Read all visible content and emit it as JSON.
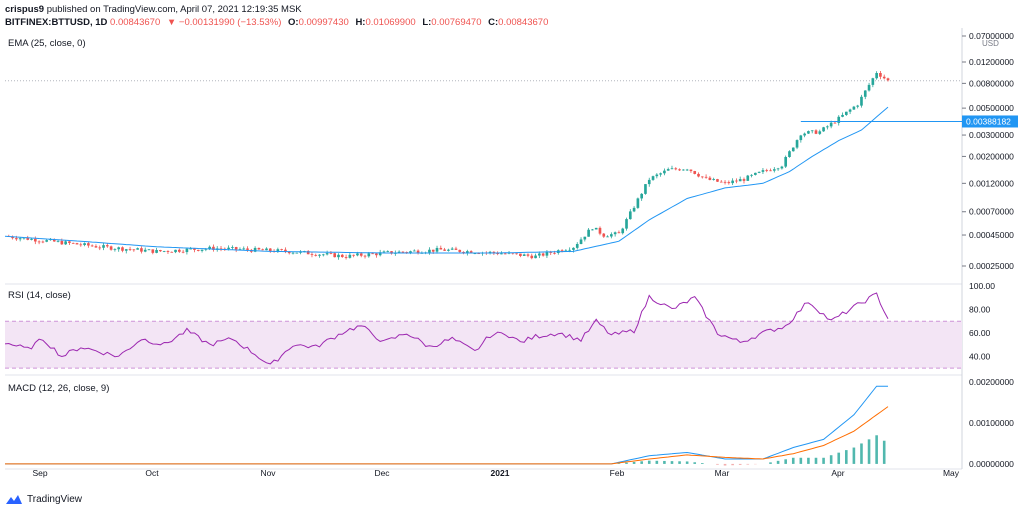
{
  "header": {
    "author": "crispus9",
    "published": "published on TradingView.com, April 07, 2021 12:19:35 MSK",
    "symbol": "BITFINEX:BTTUSD, 1D",
    "last": "0.00843670",
    "change": "▼ −0.00131990 (−13.53%)",
    "ohlc": [
      {
        "k": "O:",
        "v": "0.00997430"
      },
      {
        "k": "H:",
        "v": "0.01069900"
      },
      {
        "k": "L:",
        "v": "0.00769470"
      },
      {
        "k": "C:",
        "v": "0.00843670"
      }
    ]
  },
  "footer": {
    "brand": "TradingView"
  },
  "colors": {
    "up": "#26a69a",
    "down": "#ef5350",
    "ema": "#2196f3",
    "rsi": "#9c27b0",
    "rsi_band": "#f3e5f5",
    "macd": "#2196f3",
    "signal": "#ff6d00"
  },
  "chart_data": [
    {
      "type": "candlestick",
      "title": "EMA (25, close, 0)",
      "currency": "USD",
      "scale": "log",
      "price_tick_labels": [
        "0.07000000",
        "0.01200000",
        "0.00800000",
        "0.00500000",
        "0.00300000",
        "0.00200000",
        "0.00120000",
        "0.00070000",
        "0.00045000",
        "0.00025000"
      ],
      "price_ticks": [
        0.07,
        0.012,
        0.008,
        0.005,
        0.003,
        0.002,
        0.0012,
        0.0007,
        0.00045,
        0.00025
      ],
      "last_price_marker": "0.00388182",
      "time_labels": [
        "Sep",
        "Oct",
        "Nov",
        "Dec",
        "2021",
        "Feb",
        "Mar",
        "Apr",
        "May"
      ],
      "close_approx": [
        [
          0,
          0.00044
        ],
        [
          12,
          0.0004
        ],
        [
          25,
          0.00036
        ],
        [
          40,
          0.00033
        ],
        [
          55,
          0.00035
        ],
        [
          75,
          0.00033
        ],
        [
          90,
          0.0003
        ],
        [
          100,
          0.00032
        ],
        [
          115,
          0.00034
        ],
        [
          130,
          0.00032
        ],
        [
          140,
          0.0003
        ],
        [
          150,
          0.00036
        ],
        [
          155,
          0.00052
        ],
        [
          158,
          0.00045
        ],
        [
          162,
          0.00046
        ],
        [
          170,
          0.0013
        ],
        [
          175,
          0.00155
        ],
        [
          180,
          0.0016
        ],
        [
          185,
          0.0013
        ],
        [
          190,
          0.0012
        ],
        [
          195,
          0.0013
        ],
        [
          200,
          0.0015
        ],
        [
          205,
          0.0017
        ],
        [
          210,
          0.0031
        ],
        [
          215,
          0.0032
        ],
        [
          220,
          0.0041
        ],
        [
          225,
          0.0054
        ],
        [
          230,
          0.0099
        ],
        [
          233,
          0.0084
        ]
      ],
      "ema_approx": [
        [
          0,
          0.00044
        ],
        [
          20,
          0.0004
        ],
        [
          40,
          0.00036
        ],
        [
          70,
          0.00033
        ],
        [
          100,
          0.00032
        ],
        [
          130,
          0.00032
        ],
        [
          150,
          0.00033
        ],
        [
          162,
          0.0004
        ],
        [
          170,
          0.0006
        ],
        [
          180,
          0.0009
        ],
        [
          190,
          0.0011
        ],
        [
          200,
          0.0012
        ],
        [
          207,
          0.0015
        ],
        [
          213,
          0.002
        ],
        [
          220,
          0.0027
        ],
        [
          226,
          0.0033
        ],
        [
          233,
          0.0051
        ]
      ]
    },
    {
      "type": "line",
      "title": "RSI (14, close)",
      "ylim": [
        25,
        100
      ],
      "y_tick_labels": [
        "100.00",
        "80.00",
        "60.00",
        "40.00"
      ],
      "y_ticks": [
        100,
        80,
        60,
        40
      ],
      "band": [
        30,
        70
      ],
      "values_approx": [
        [
          0,
          52
        ],
        [
          6,
          46
        ],
        [
          10,
          55
        ],
        [
          15,
          40
        ],
        [
          20,
          48
        ],
        [
          25,
          44
        ],
        [
          30,
          40
        ],
        [
          36,
          55
        ],
        [
          42,
          50
        ],
        [
          48,
          62
        ],
        [
          54,
          50
        ],
        [
          60,
          55
        ],
        [
          66,
          42
        ],
        [
          70,
          32
        ],
        [
          76,
          50
        ],
        [
          82,
          48
        ],
        [
          90,
          62
        ],
        [
          94,
          66
        ],
        [
          100,
          52
        ],
        [
          106,
          60
        ],
        [
          112,
          48
        ],
        [
          118,
          55
        ],
        [
          124,
          44
        ],
        [
          128,
          58
        ],
        [
          132,
          60
        ],
        [
          136,
          52
        ],
        [
          140,
          57
        ],
        [
          146,
          60
        ],
        [
          152,
          54
        ],
        [
          156,
          70
        ],
        [
          160,
          58
        ],
        [
          166,
          62
        ],
        [
          170,
          91
        ],
        [
          176,
          80
        ],
        [
          182,
          90
        ],
        [
          188,
          60
        ],
        [
          194,
          52
        ],
        [
          200,
          60
        ],
        [
          206,
          66
        ],
        [
          212,
          87
        ],
        [
          218,
          70
        ],
        [
          224,
          82
        ],
        [
          230,
          93
        ],
        [
          233,
          72
        ]
      ]
    },
    {
      "type": "line",
      "title": "MACD (12, 26, close, 9)",
      "y_tick_labels": [
        "0.00200000",
        "0.00100000",
        "0.00000000"
      ],
      "y_ticks": [
        0.002,
        0.001,
        0.0
      ],
      "ylim": [
        -0.0001,
        0.0021
      ],
      "series": [
        {
          "values_approx": [
            [
              0,
              0
            ],
            [
              160,
              0
            ],
            [
              170,
              0.0002
            ],
            [
              180,
              0.00028
            ],
            [
              190,
              0.00012
            ],
            [
              200,
              0.00012
            ],
            [
              208,
              0.0004
            ],
            [
              216,
              0.0006
            ],
            [
              224,
              0.0012
            ],
            [
              230,
              0.0019
            ],
            [
              233,
              0.0019
            ]
          ]
        },
        {
          "values_approx": [
            [
              0,
              0
            ],
            [
              160,
              0
            ],
            [
              170,
              0.00012
            ],
            [
              180,
              0.00022
            ],
            [
              190,
              0.00016
            ],
            [
              200,
              0.00012
            ],
            [
              208,
              0.00025
            ],
            [
              216,
              0.00045
            ],
            [
              224,
              0.0008
            ],
            [
              230,
              0.0012
            ],
            [
              233,
              0.0014
            ]
          ]
        }
      ]
    }
  ]
}
